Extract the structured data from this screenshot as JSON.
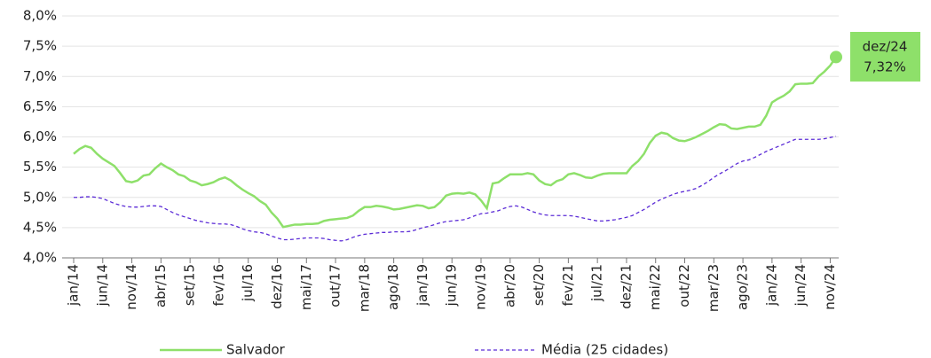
{
  "chart_data": {
    "type": "line",
    "categories": [
      "jan/14",
      null,
      null,
      null,
      null,
      "jun/14",
      null,
      null,
      null,
      null,
      "nov/14",
      null,
      null,
      null,
      null,
      "abr/15",
      null,
      null,
      null,
      null,
      "set/15",
      null,
      null,
      null,
      null,
      "fev/16",
      null,
      null,
      null,
      null,
      "jul/16",
      null,
      null,
      null,
      null,
      "dez/16",
      null,
      null,
      null,
      null,
      "mai/17",
      null,
      null,
      null,
      null,
      "out/17",
      null,
      null,
      null,
      null,
      "mar/18",
      null,
      null,
      null,
      null,
      "ago/18",
      null,
      null,
      null,
      null,
      "jan/19",
      null,
      null,
      null,
      null,
      "jun/19",
      null,
      null,
      null,
      null,
      "nov/19",
      null,
      null,
      null,
      null,
      "abr/20",
      null,
      null,
      null,
      null,
      "set/20",
      null,
      null,
      null,
      null,
      "fev/21",
      null,
      null,
      null,
      null,
      "jul/21",
      null,
      null,
      null,
      null,
      "dez/21",
      null,
      null,
      null,
      null,
      "mai/22",
      null,
      null,
      null,
      null,
      "out/22",
      null,
      null,
      null,
      null,
      "mar/23",
      null,
      null,
      null,
      null,
      "ago/23",
      null,
      null,
      null,
      null,
      "jan/24",
      null,
      null,
      null,
      null,
      "jun/24",
      null,
      null,
      null,
      null,
      "nov/24",
      null
    ],
    "series": [
      {
        "name": "Salvador",
        "color": "#8ee06a",
        "dash": false,
        "values": [
          5.72,
          5.8,
          5.85,
          5.82,
          5.72,
          5.64,
          5.58,
          5.52,
          5.4,
          5.27,
          5.25,
          5.28,
          5.36,
          5.38,
          5.48,
          5.56,
          5.5,
          5.45,
          5.38,
          5.35,
          5.28,
          5.25,
          5.2,
          5.22,
          5.25,
          5.3,
          5.33,
          5.28,
          5.2,
          5.13,
          5.07,
          5.02,
          4.94,
          4.88,
          4.75,
          4.65,
          4.51,
          4.53,
          4.55,
          4.55,
          4.56,
          4.56,
          4.57,
          4.61,
          4.63,
          4.64,
          4.65,
          4.66,
          4.7,
          4.78,
          4.84,
          4.84,
          4.86,
          4.85,
          4.83,
          4.8,
          4.81,
          4.83,
          4.85,
          4.87,
          4.86,
          4.82,
          4.84,
          4.92,
          5.03,
          5.06,
          5.07,
          5.06,
          5.08,
          5.05,
          4.95,
          4.82,
          5.23,
          5.25,
          5.32,
          5.38,
          5.38,
          5.38,
          5.4,
          5.38,
          5.28,
          5.22,
          5.2,
          5.27,
          5.3,
          5.38,
          5.4,
          5.37,
          5.33,
          5.32,
          5.36,
          5.39,
          5.4,
          5.4,
          5.4,
          5.4,
          5.52,
          5.6,
          5.72,
          5.9,
          6.02,
          6.07,
          6.05,
          5.98,
          5.94,
          5.93,
          5.96,
          6.0,
          6.05,
          6.1,
          6.16,
          6.21,
          6.2,
          6.14,
          6.13,
          6.15,
          6.17,
          6.17,
          6.2,
          6.35,
          6.57,
          6.63,
          6.68,
          6.75,
          6.87,
          6.88,
          6.88,
          6.89,
          7.0,
          7.08,
          7.18,
          7.32
        ]
      },
      {
        "name": "Média (25 cidades)",
        "color": "#5b2bd6",
        "dash": true,
        "values": [
          5.0,
          5.0,
          5.01,
          5.01,
          5.0,
          4.98,
          4.94,
          4.9,
          4.87,
          4.85,
          4.84,
          4.84,
          4.85,
          4.86,
          4.86,
          4.85,
          4.8,
          4.75,
          4.71,
          4.68,
          4.65,
          4.62,
          4.6,
          4.58,
          4.57,
          4.56,
          4.56,
          4.55,
          4.52,
          4.48,
          4.45,
          4.43,
          4.42,
          4.4,
          4.36,
          4.33,
          4.3,
          4.3,
          4.31,
          4.32,
          4.33,
          4.33,
          4.33,
          4.32,
          4.3,
          4.29,
          4.28,
          4.3,
          4.34,
          4.37,
          4.39,
          4.4,
          4.41,
          4.42,
          4.42,
          4.43,
          4.43,
          4.43,
          4.44,
          4.47,
          4.5,
          4.52,
          4.55,
          4.58,
          4.6,
          4.61,
          4.62,
          4.63,
          4.66,
          4.7,
          4.73,
          4.74,
          4.76,
          4.78,
          4.82,
          4.85,
          4.86,
          4.84,
          4.8,
          4.76,
          4.73,
          4.71,
          4.7,
          4.7,
          4.7,
          4.7,
          4.69,
          4.67,
          4.65,
          4.63,
          4.61,
          4.61,
          4.62,
          4.63,
          4.65,
          4.67,
          4.7,
          4.75,
          4.8,
          4.86,
          4.92,
          4.97,
          5.01,
          5.05,
          5.08,
          5.1,
          5.12,
          5.15,
          5.2,
          5.26,
          5.33,
          5.39,
          5.44,
          5.5,
          5.56,
          5.6,
          5.62,
          5.66,
          5.71,
          5.76,
          5.8,
          5.84,
          5.88,
          5.92,
          5.96,
          5.96,
          5.96,
          5.96,
          5.96,
          5.97,
          5.99,
          6.01
        ]
      }
    ],
    "ylim": [
      4.0,
      8.0
    ],
    "yticks": [
      {
        "value": 4.0,
        "label": "4,0%"
      },
      {
        "value": 4.5,
        "label": "4,5%"
      },
      {
        "value": 5.0,
        "label": "5,0%"
      },
      {
        "value": 5.5,
        "label": "5,5%"
      },
      {
        "value": 6.0,
        "label": "6,0%"
      },
      {
        "value": 6.5,
        "label": "6,5%"
      },
      {
        "value": 7.0,
        "label": "7,0%"
      },
      {
        "value": 7.5,
        "label": "7,5%"
      },
      {
        "value": 8.0,
        "label": "8,0%"
      }
    ],
    "grid": true,
    "legend": "bottom",
    "annotation": {
      "title": "dez/24",
      "text": "7,32%",
      "color": "#8ee06a"
    }
  }
}
